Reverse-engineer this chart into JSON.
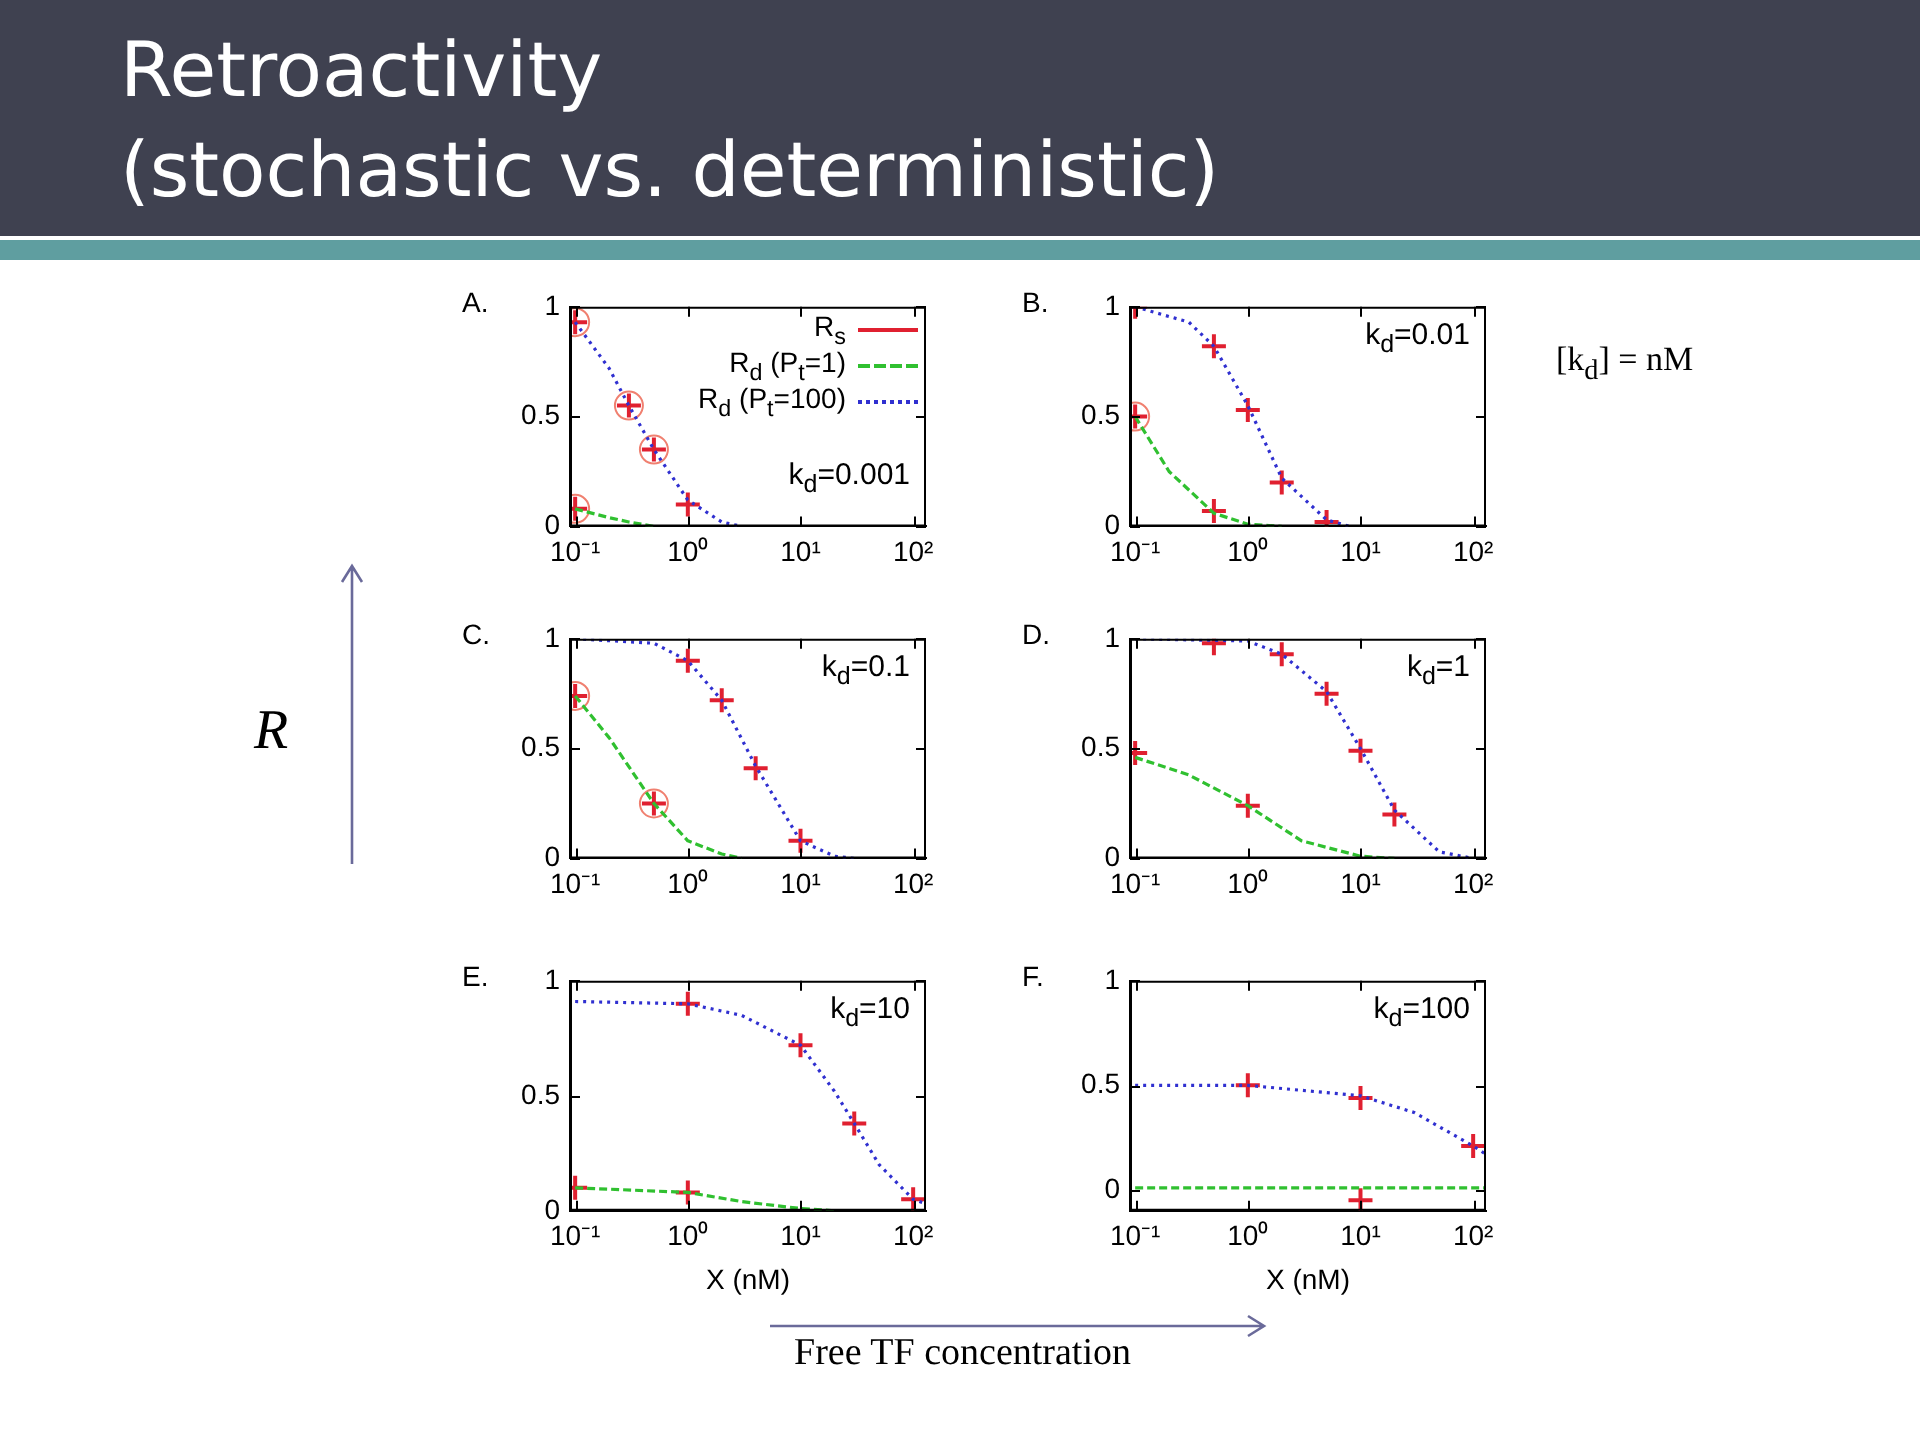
{
  "chart_data": [
    {
      "type": "other",
      "title": "Retroactivity\n(stochastic vs. deterministic)",
      "ylabel": "R",
      "xlabel": "Free TF concentration",
      "annotations": [
        "[k$_{d}$] = nM"
      ]
    },
    {
      "type": "scatter",
      "title": "A.",
      "log": "x",
      "xlim": [
        0.09,
        130
      ],
      "xticks": [
        {
          "value": 0.1,
          "label": "10⁻¹"
        },
        {
          "value": 1,
          "label": "10⁰"
        },
        {
          "value": 10,
          "label": "10¹"
        },
        {
          "value": 100,
          "label": "10²"
        }
      ],
      "ylim": [
        0,
        1
      ],
      "yticks": [
        0,
        0.5,
        1
      ],
      "legend": "top right",
      "annotations": [
        "k$_{d}$=0.001"
      ],
      "series": [
        {
          "name": "R$_{s}$",
          "type": "scatter",
          "marker": "cross",
          "color": "#e02030",
          "x": [
            0.1,
            0.3,
            0.5,
            1,
            0.1
          ],
          "values": [
            0.93,
            0.55,
            0.35,
            0.1,
            0.08
          ]
        },
        {
          "name": "R$_{d}$ (P$_{t}$=1)",
          "type": "line",
          "marker": "none",
          "line_style": "dashed",
          "color": "#30c030",
          "x": [
            0.1,
            0.2,
            0.3,
            0.5
          ],
          "values": [
            0.08,
            0.04,
            0.02,
            0
          ]
        },
        {
          "name": "R$_{d}$ (P$_{t}$=100)",
          "type": "line",
          "marker": "none",
          "line_style": "dotted",
          "color": "#3030d0",
          "x": [
            0.1,
            0.2,
            0.3,
            0.5,
            1,
            2,
            3
          ],
          "values": [
            0.93,
            0.72,
            0.55,
            0.35,
            0.12,
            0.02,
            0
          ]
        },
        {
          "type": "scatter",
          "marker": "circle",
          "color": "#f08070",
          "x": [
            0.1,
            0.3,
            0.5,
            0.1
          ],
          "values": [
            0.93,
            0.55,
            0.35,
            0.08
          ]
        }
      ]
    },
    {
      "type": "scatter",
      "title": "B.",
      "log": "x",
      "xlim": [
        0.09,
        130
      ],
      "xticks": [
        {
          "value": 0.1,
          "label": "10⁻¹"
        },
        {
          "value": 1,
          "label": "10⁰"
        },
        {
          "value": 10,
          "label": "10¹"
        },
        {
          "value": 100,
          "label": "10²"
        }
      ],
      "ylim": [
        0,
        1
      ],
      "yticks": [
        0,
        0.5,
        1
      ],
      "annotations": [
        "k$_{d}$=0.01"
      ],
      "series": [
        {
          "type": "scatter",
          "marker": "cross",
          "color": "#e02030",
          "x": [
            0.1,
            0.5,
            1,
            2,
            5,
            0.1,
            0.5
          ],
          "values": [
            1,
            0.82,
            0.53,
            0.2,
            0.02,
            0.5,
            0.07
          ]
        },
        {
          "type": "line",
          "marker": "none",
          "line_style": "dashed",
          "color": "#30c030",
          "x": [
            0.1,
            0.2,
            0.5,
            1,
            2
          ],
          "values": [
            0.5,
            0.25,
            0.06,
            0.01,
            0
          ]
        },
        {
          "type": "line",
          "marker": "none",
          "line_style": "dotted",
          "color": "#3030d0",
          "x": [
            0.1,
            0.3,
            0.5,
            1,
            2,
            5,
            8
          ],
          "values": [
            1,
            0.93,
            0.82,
            0.55,
            0.22,
            0.03,
            0
          ]
        },
        {
          "type": "scatter",
          "marker": "circle",
          "color": "#f08070",
          "x": [
            0.1
          ],
          "values": [
            0.5
          ]
        }
      ]
    },
    {
      "type": "scatter",
      "title": "C.",
      "log": "x",
      "xlim": [
        0.09,
        130
      ],
      "xticks": [
        {
          "value": 0.1,
          "label": "10⁻¹"
        },
        {
          "value": 1,
          "label": "10⁰"
        },
        {
          "value": 10,
          "label": "10¹"
        },
        {
          "value": 100,
          "label": "10²"
        }
      ],
      "ylim": [
        0,
        1
      ],
      "yticks": [
        0,
        0.5,
        1
      ],
      "annotations": [
        "k$_{d}$=0.1"
      ],
      "series": [
        {
          "type": "scatter",
          "marker": "cross",
          "color": "#e02030",
          "x": [
            1,
            2,
            4,
            10,
            0.1,
            0.5
          ],
          "values": [
            0.9,
            0.72,
            0.41,
            0.08,
            0.74,
            0.25
          ]
        },
        {
          "type": "line",
          "marker": "none",
          "line_style": "dashed",
          "color": "#30c030",
          "x": [
            0.1,
            0.2,
            0.5,
            1,
            2,
            3
          ],
          "values": [
            0.74,
            0.55,
            0.25,
            0.08,
            0.02,
            0
          ]
        },
        {
          "type": "line",
          "marker": "none",
          "line_style": "dotted",
          "color": "#3030d0",
          "x": [
            0.1,
            0.5,
            1,
            2,
            4,
            10,
            20,
            30
          ],
          "values": [
            1,
            0.98,
            0.9,
            0.72,
            0.42,
            0.08,
            0.01,
            0
          ]
        },
        {
          "type": "scatter",
          "marker": "circle",
          "color": "#f08070",
          "x": [
            0.1,
            0.5
          ],
          "values": [
            0.74,
            0.25
          ]
        }
      ]
    },
    {
      "type": "scatter",
      "title": "D.",
      "log": "x",
      "xlim": [
        0.09,
        130
      ],
      "xticks": [
        {
          "value": 0.1,
          "label": "10⁻¹"
        },
        {
          "value": 1,
          "label": "10⁰"
        },
        {
          "value": 10,
          "label": "10¹"
        },
        {
          "value": 100,
          "label": "10²"
        }
      ],
      "ylim": [
        0,
        1
      ],
      "yticks": [
        0,
        0.5,
        1
      ],
      "annotations": [
        "k$_{d}$=1"
      ],
      "series": [
        {
          "type": "scatter",
          "marker": "cross",
          "color": "#e02030",
          "x": [
            0.5,
            2,
            5,
            10,
            20,
            0.1,
            1
          ],
          "values": [
            0.98,
            0.93,
            0.75,
            0.49,
            0.2,
            0.48,
            0.24
          ]
        },
        {
          "type": "line",
          "marker": "none",
          "line_style": "dashed",
          "color": "#30c030",
          "x": [
            0.1,
            0.3,
            1,
            3,
            10,
            20
          ],
          "values": [
            0.46,
            0.38,
            0.24,
            0.08,
            0.01,
            0
          ]
        },
        {
          "type": "line",
          "marker": "none",
          "line_style": "dotted",
          "color": "#3030d0",
          "x": [
            0.1,
            1,
            2,
            5,
            10,
            20,
            50,
            100
          ],
          "values": [
            1,
            0.99,
            0.93,
            0.76,
            0.5,
            0.22,
            0.03,
            0
          ]
        }
      ]
    },
    {
      "type": "scatter",
      "title": "E.",
      "xlabel": "X (nM)",
      "log": "x",
      "xlim": [
        0.09,
        130
      ],
      "xticks": [
        {
          "value": 0.1,
          "label": "10⁻¹"
        },
        {
          "value": 1,
          "label": "10⁰"
        },
        {
          "value": 10,
          "label": "10¹"
        },
        {
          "value": 100,
          "label": "10²"
        }
      ],
      "ylim": [
        0,
        1
      ],
      "yticks": [
        0,
        0.5,
        1
      ],
      "annotations": [
        "k$_{d}$=10"
      ],
      "series": [
        {
          "type": "scatter",
          "marker": "cross",
          "color": "#e02030",
          "x": [
            1,
            10,
            30,
            100,
            0.1,
            1
          ],
          "values": [
            0.9,
            0.72,
            0.38,
            0.05,
            0.1,
            0.08
          ]
        },
        {
          "type": "line",
          "marker": "none",
          "line_style": "dashed",
          "color": "#30c030",
          "x": [
            0.1,
            1,
            3,
            10,
            20
          ],
          "values": [
            0.1,
            0.08,
            0.04,
            0.01,
            0
          ]
        },
        {
          "type": "line",
          "marker": "none",
          "line_style": "dotted",
          "color": "#3030d0",
          "x": [
            0.1,
            1,
            3,
            10,
            20,
            30,
            50,
            100,
            130
          ],
          "values": [
            0.91,
            0.9,
            0.85,
            0.72,
            0.52,
            0.38,
            0.2,
            0.05,
            0.03
          ]
        }
      ]
    },
    {
      "type": "scatter",
      "title": "F.",
      "xlabel": "X (nM)",
      "log": "x",
      "xlim": [
        0.09,
        130
      ],
      "xticks": [
        {
          "value": 0.1,
          "label": "10⁻¹"
        },
        {
          "value": 1,
          "label": "10⁰"
        },
        {
          "value": 10,
          "label": "10¹"
        },
        {
          "value": 100,
          "label": "10²"
        }
      ],
      "ylim": [
        -0.1,
        1
      ],
      "yticks": [
        0,
        0.5,
        1
      ],
      "annotations": [
        "k$_{d}$=100"
      ],
      "series": [
        {
          "type": "scatter",
          "marker": "cross",
          "color": "#e02030",
          "x": [
            1,
            10,
            100,
            10
          ],
          "values": [
            0.5,
            0.44,
            0.21,
            -0.05
          ]
        },
        {
          "type": "line",
          "marker": "none",
          "line_style": "dashed",
          "color": "#30c030",
          "x": [
            0.1,
            130
          ],
          "values": [
            0.01,
            0.01
          ]
        },
        {
          "type": "line",
          "marker": "none",
          "line_style": "dotted",
          "color": "#3030d0",
          "x": [
            0.1,
            1,
            10,
            30,
            100,
            130
          ],
          "values": [
            0.5,
            0.5,
            0.45,
            0.37,
            0.21,
            0.17
          ]
        }
      ]
    }
  ]
}
